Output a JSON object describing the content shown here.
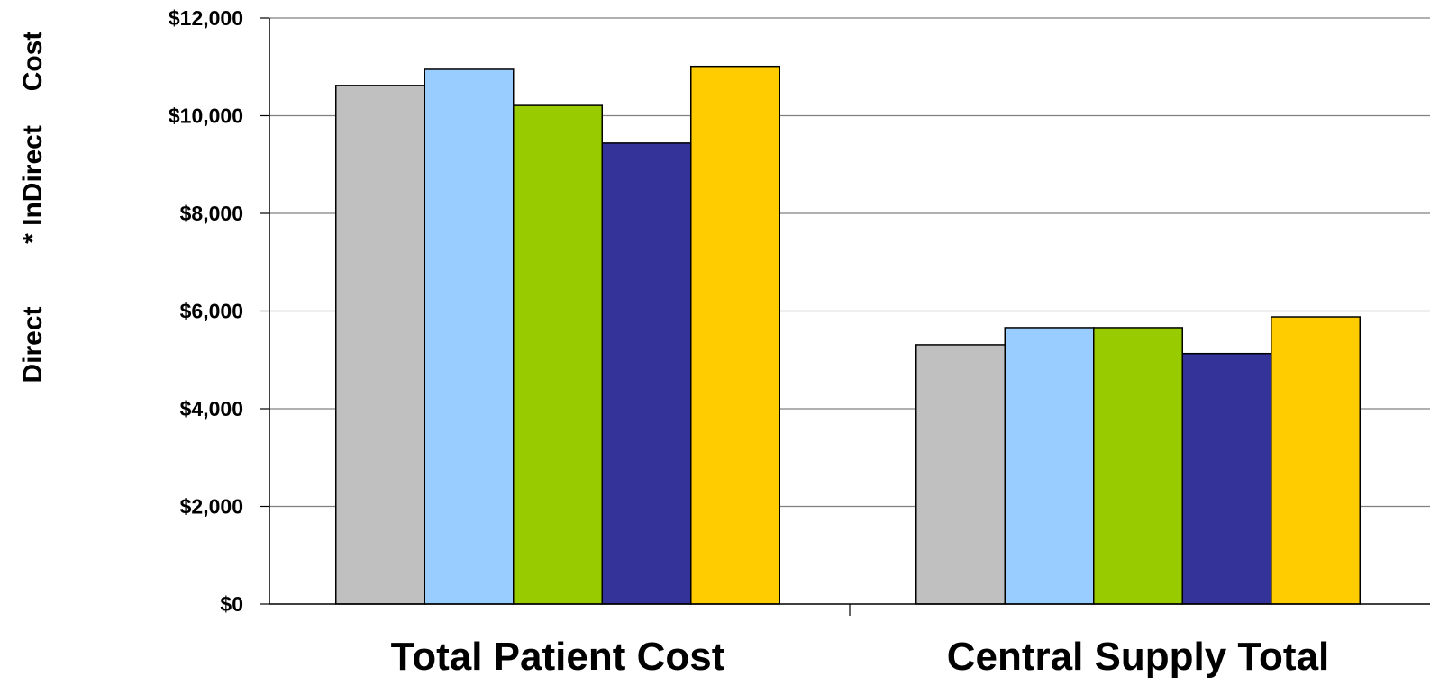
{
  "chart_data": {
    "type": "bar",
    "ylabel_parts": [
      "Direct",
      "* InDirect",
      "Cost"
    ],
    "categories": [
      "Total Patient Cost",
      "Central Supply Total"
    ],
    "ylim": [
      0,
      12000
    ],
    "yticks": [
      0,
      2000,
      4000,
      6000,
      8000,
      10000,
      12000
    ],
    "ytick_labels": [
      "$0",
      "$2,000",
      "$4,000",
      "$6,000",
      "$8,000",
      "$10,000",
      "$12,000"
    ],
    "grid": true,
    "legend": "none",
    "series": [
      {
        "color": "#C0C0C0",
        "values": [
          10620,
          5310
        ]
      },
      {
        "color": "#99CCFF",
        "values": [
          10950,
          5660
        ]
      },
      {
        "color": "#99CC00",
        "values": [
          10210,
          5660
        ]
      },
      {
        "color": "#333399",
        "values": [
          9440,
          5130
        ]
      },
      {
        "color": "#FFCC00",
        "values": [
          11010,
          5880
        ]
      }
    ]
  }
}
